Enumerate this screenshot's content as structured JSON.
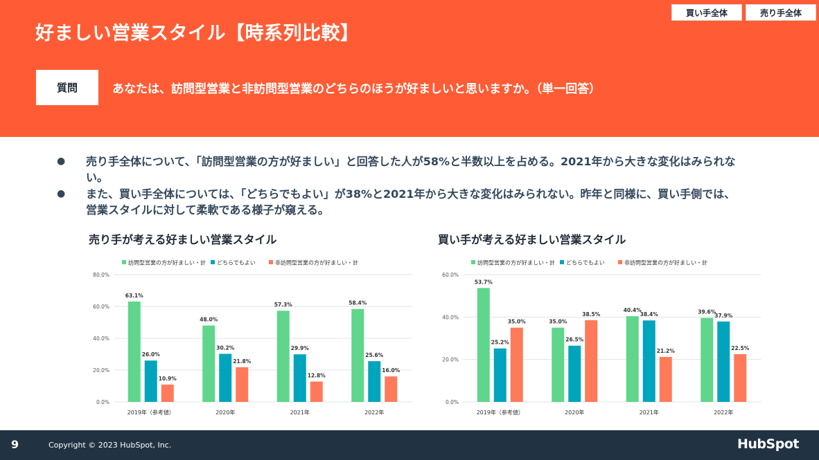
{
  "header": {
    "title": "好ましい営業スタイル【時系列比較】",
    "tabs": [
      "買い手全体",
      "売り手全体"
    ],
    "question_label": "質問",
    "question_text": "あなたは、訪問型営業と非訪問型営業のどちらのほうが好ましいと思いますか。（単一回答）"
  },
  "bullets": [
    "売り手全体について、「訪問型営業の方が好ましい」と回答した人が58%と半数以上を占める。2021年から大きな変化はみられない。",
    "また、買い手全体については、「どちらでもよい」が38%と2021年から大きな変化はみられない。昨年と同様に、買い手側では、営業スタイルに対して柔軟である様子が窺える。"
  ],
  "colors": {
    "brand": "#ff5c35",
    "footer": "#213343",
    "series": [
      "#5fd68b",
      "#00a4bd",
      "#ff7a59"
    ]
  },
  "chart_data": [
    {
      "type": "bar",
      "title": "売り手が考える好ましい営業スタイル",
      "categories": [
        "2019年（参考値）",
        "2020年",
        "2021年",
        "2022年"
      ],
      "series": [
        {
          "name": "訪問型営業の方が好ましい・計",
          "values": [
            63.1,
            48.0,
            57.3,
            58.4
          ]
        },
        {
          "name": "どちらでもよい",
          "values": [
            26.0,
            30.2,
            29.9,
            25.6
          ]
        },
        {
          "name": "非訪問型営業の方が好ましい・計",
          "values": [
            10.9,
            21.8,
            12.8,
            16.0
          ]
        }
      ],
      "ylim": [
        0,
        80
      ],
      "yticks": [
        "0.0%",
        "20.0%",
        "40.0%",
        "60.0%",
        "80.0%"
      ],
      "value_labels": [
        [
          "63.1%",
          "48.0%",
          "57.3%",
          "58.4%"
        ],
        [
          "26.0%",
          "30.2%",
          "29.9%",
          "25.6%"
        ],
        [
          "10.9%",
          "21.8%",
          "12.8%",
          "16.0%"
        ]
      ],
      "legend": "top",
      "grid": true
    },
    {
      "type": "bar",
      "title": "買い手が考える好ましい営業スタイル",
      "categories": [
        "2019年（参考値）",
        "2020年",
        "2021年",
        "2022年"
      ],
      "series": [
        {
          "name": "訪問型営業の方が好ましい・計",
          "values": [
            53.7,
            35.0,
            40.4,
            39.6
          ]
        },
        {
          "name": "どちらでもよい",
          "values": [
            25.2,
            26.5,
            38.4,
            37.9
          ]
        },
        {
          "name": "非訪問型営業の方が好ましい・計",
          "values": [
            35.0,
            38.5,
            21.2,
            22.5
          ]
        }
      ],
      "ylim": [
        0,
        60
      ],
      "yticks": [
        "0.0%",
        "20.0%",
        "40.0%",
        "60.0%"
      ],
      "value_labels": [
        [
          "53.7%",
          "35.0%",
          "40.4%",
          "39.6%"
        ],
        [
          "25.2%",
          "26.5%",
          "38.4%",
          "37.9%"
        ],
        [
          "35.0%",
          "38.5%",
          "21.2%",
          "22.5%"
        ]
      ],
      "legend": "top",
      "grid": true
    }
  ],
  "footer": {
    "page_number": "9",
    "copyright": "Copyright © 2023 HubSpot, Inc.",
    "logo_text": "HubSpot"
  }
}
